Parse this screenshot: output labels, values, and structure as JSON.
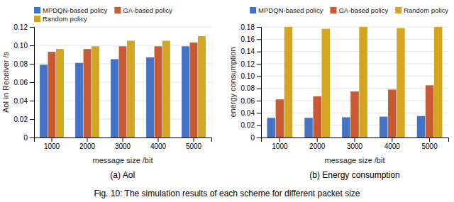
{
  "chart_data": [
    {
      "type": "bar",
      "title": "(a) AoI",
      "categories": [
        1000,
        2000,
        3000,
        4000,
        5000
      ],
      "series": [
        {
          "name": "MPDQN-based policy",
          "color": "#4472C4",
          "values": [
            0.079,
            0.081,
            0.085,
            0.087,
            0.099
          ]
        },
        {
          "name": "GA-based policy",
          "color": "#C75A31",
          "values": [
            0.093,
            0.096,
            0.099,
            0.099,
            0.103
          ]
        },
        {
          "name": "Random policy",
          "color": "#D4A520",
          "values": [
            0.096,
            0.099,
            0.105,
            0.105,
            0.11
          ]
        }
      ],
      "xlabel": "message size /bit",
      "ylabel": "AoI in Receiver /s",
      "ylim": [
        0,
        0.12
      ],
      "yticks": [
        0,
        0.02,
        0.04,
        0.06,
        0.08,
        {
          "value": 0.1,
          "label": "0.10"
        },
        0.12
      ],
      "grid": true,
      "legend": "top-left"
    },
    {
      "type": "bar",
      "title": "(b) Energy consumption",
      "categories": [
        1000,
        2000,
        3000,
        4000,
        5000
      ],
      "series": [
        {
          "name": "MPDQN-based policy",
          "color": "#4472C4",
          "values": [
            0.032,
            0.032,
            0.033,
            0.034,
            0.035
          ]
        },
        {
          "name": "GA-based policy",
          "color": "#C75A31",
          "values": [
            0.062,
            0.067,
            0.075,
            0.078,
            0.085
          ]
        },
        {
          "name": "Random policy",
          "color": "#D4A520",
          "values": [
            0.18,
            0.177,
            0.18,
            0.178,
            0.18
          ]
        }
      ],
      "xlabel": "message size /bit",
      "ylabel": "energy consumption",
      "ylim": [
        0,
        0.18
      ],
      "yticks": [
        0,
        0.02,
        0.04,
        0.06,
        0.08,
        {
          "value": 0.1,
          "label": "0.10"
        },
        0.12,
        0.14,
        0.16,
        0.18
      ],
      "grid": true,
      "legend": "top-right"
    }
  ],
  "caption": "Fig. 10: The simulation results of each scheme for different packet size"
}
